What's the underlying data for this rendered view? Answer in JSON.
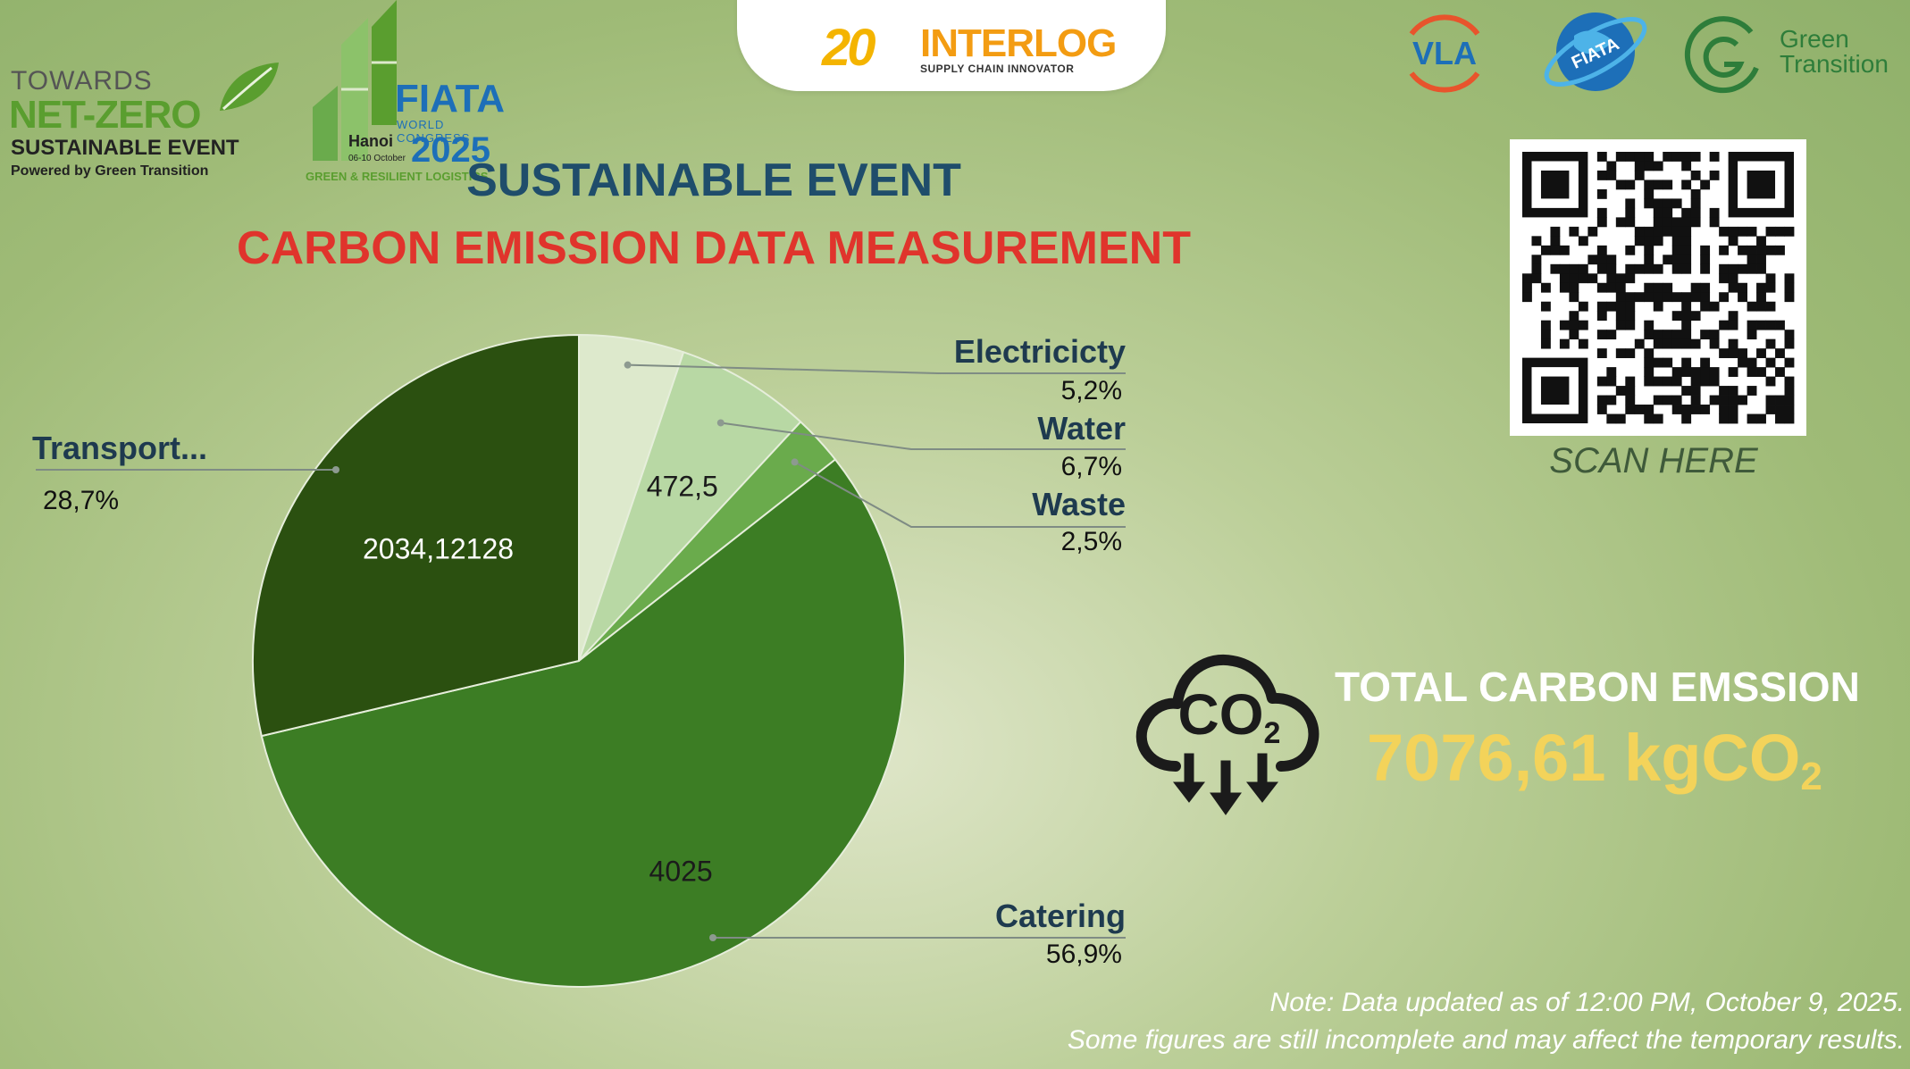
{
  "logos": {
    "interlog": {
      "number": "20",
      "name": "INTERLOG",
      "tagline": "SUPPLY CHAIN INNOVATOR"
    },
    "netzero": {
      "line1": "TOWARDS",
      "line2": "NET-ZERO",
      "line3": "SUSTAINABLE EVENT",
      "powered": "Powered by  Green Transition"
    },
    "fiata": {
      "name": "FIATA",
      "sub": "WORLD CONGRESS",
      "city": "Hanoi",
      "dates": "06-10 October",
      "year": "2025",
      "tagline": "GREEN & RESILIENT LOGISTICS"
    },
    "vla": "VLA",
    "fiata_globe": "FIATA",
    "green_transition": {
      "line1": "Green",
      "line2": "Transition"
    }
  },
  "header": {
    "title": "SUSTAINABLE EVENT",
    "subtitle": "CARBON EMISSION DATA MEASUREMENT"
  },
  "qr": {
    "caption": "SCAN HERE"
  },
  "total": {
    "label": "TOTAL CARBON EMSSION",
    "value": "7076,61 kgCO",
    "subscript": "2",
    "icon_text": "CO",
    "icon_sub": "2"
  },
  "notes": {
    "line1": "Note: Data updated as of 12:00 PM, October 9, 2025.",
    "line2": "Some figures are still incomplete and may affect the temporary results."
  },
  "colors": {
    "title": "#1f4d6b",
    "subtitle": "#e0342c",
    "total_value": "#f3d35a"
  },
  "chart_data": {
    "type": "pie",
    "slices": [
      {
        "name": "Electricicty",
        "percent": 5.2,
        "percent_label": "5,2%",
        "data_label": "",
        "color": "#dde9cc"
      },
      {
        "name": "Water",
        "percent": 6.7,
        "percent_label": "6,7%",
        "data_label": "472,5",
        "color": "#b8d8a4"
      },
      {
        "name": "Waste",
        "percent": 2.5,
        "percent_label": "2,5%",
        "data_label": "",
        "color": "#6aab4c"
      },
      {
        "name": "Catering",
        "percent": 56.9,
        "percent_label": "56,9%",
        "data_label": "4025",
        "color": "#3c7d24"
      },
      {
        "name": "Transport...",
        "percent": 28.7,
        "percent_label": "28,7%",
        "data_label": "2034,12128",
        "color": "#2b5010"
      }
    ],
    "start_angle": "12 o'clock",
    "direction": "clockwise",
    "legend": "callouts"
  }
}
